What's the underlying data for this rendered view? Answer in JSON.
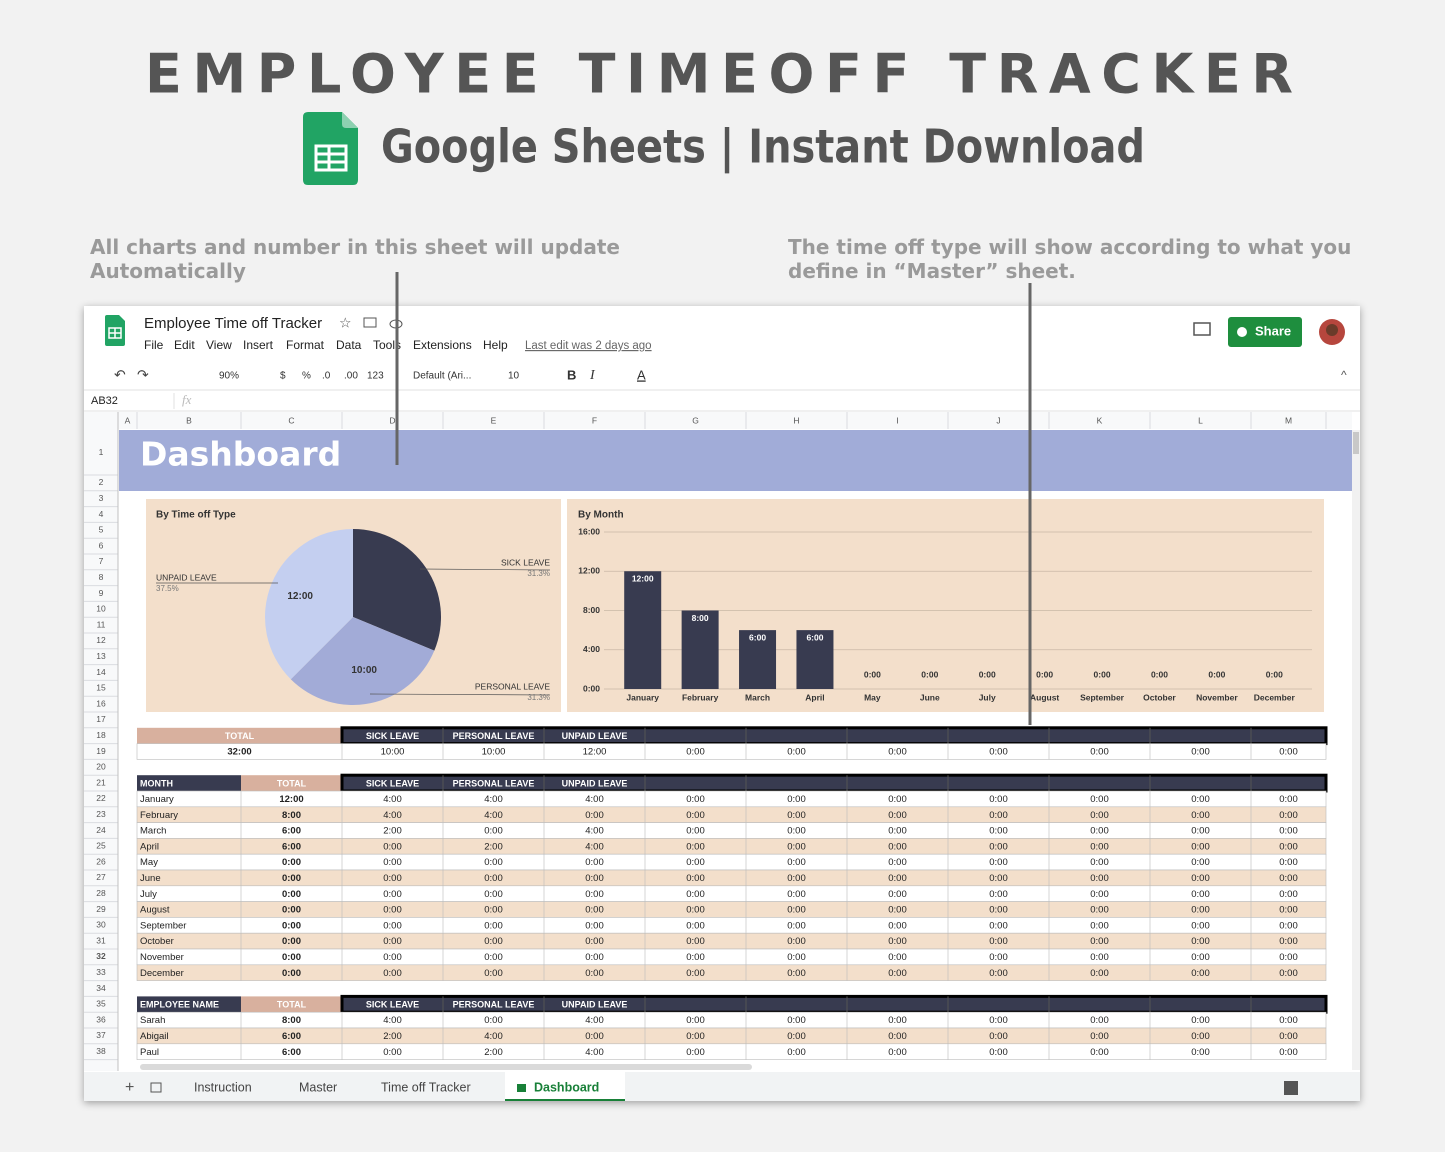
{
  "header": {
    "title": "EMPLOYEE TIMEOFF TRACKER",
    "subtitle": "Google Sheets | Instant Download"
  },
  "annotations": [
    "All charts and number in this sheet will update Automatically",
    "The time off type will show according to what you define in “Master” sheet."
  ],
  "app": {
    "doc_title": "Employee Time off Tracker",
    "menu": [
      "File",
      "Edit",
      "View",
      "Insert",
      "Format",
      "Data",
      "Tools",
      "Extensions",
      "Help"
    ],
    "last_edit": "Last edit was 2 days ago",
    "share": "Share",
    "toolbar": [
      "90%",
      "$",
      "%",
      ".0",
      ".00",
      "123",
      "Default (Ari...",
      "10",
      "B",
      "I",
      "A"
    ],
    "cell_ref": "AB32",
    "fx": "fx",
    "tabs": [
      "Instruction",
      "Master",
      "Time off Tracker",
      "Dashboard"
    ]
  },
  "sheet": {
    "columns": [
      "A",
      "B",
      "C",
      "D",
      "E",
      "F",
      "G",
      "H",
      "I",
      "J",
      "K",
      "L",
      "M"
    ],
    "rows": [
      1,
      2,
      3,
      4,
      5,
      6,
      7,
      8,
      9,
      10,
      11,
      12,
      13,
      14,
      15,
      16,
      17,
      18,
      19,
      20,
      21,
      22,
      23,
      24,
      25,
      26,
      27,
      28,
      29,
      30,
      31,
      32,
      33,
      34,
      35,
      36,
      37,
      38
    ],
    "heading": "Dashboard"
  },
  "chart_data": [
    {
      "type": "pie",
      "title": "By Time off Type",
      "categories": [
        "SICK LEAVE",
        "PERSONAL LEAVE",
        "UNPAID LEAVE"
      ],
      "values": [
        10,
        10,
        12
      ],
      "value_labels": [
        null,
        "10:00",
        "12:00"
      ],
      "percent_labels": [
        "31.3%",
        "31.3%",
        "37.5%"
      ],
      "colors": [
        "#383b50",
        "#a2abd7",
        "#c4cff0"
      ]
    },
    {
      "type": "bar",
      "title": "By Month",
      "categories": [
        "January",
        "February",
        "March",
        "April",
        "May",
        "June",
        "July",
        "August",
        "September",
        "October",
        "November",
        "December"
      ],
      "values": [
        12,
        8,
        6,
        6,
        0,
        0,
        0,
        0,
        0,
        0,
        0,
        0
      ],
      "value_labels": [
        "12:00",
        "8:00",
        "6:00",
        "6:00",
        "0:00",
        "0:00",
        "0:00",
        "0:00",
        "0:00",
        "0:00",
        "0:00",
        "0:00"
      ],
      "color": "#383b50",
      "ylim": [
        0,
        16
      ],
      "yticks": [
        {
          "value": 0,
          "label": "0:00"
        },
        {
          "value": 4,
          "label": "4:00"
        },
        {
          "value": 8,
          "label": "8:00"
        },
        {
          "value": 12,
          "label": "12:00"
        },
        {
          "value": 16,
          "label": "16:00"
        }
      ],
      "grid": true
    }
  ],
  "tables": [
    {
      "header": [
        "TOTAL",
        "SICK LEAVE",
        "PERSONAL LEAVE",
        "UNPAID LEAVE"
      ],
      "rows": [
        [
          "32:00",
          "10:00",
          "10:00",
          "12:00",
          "0:00",
          "0:00",
          "0:00",
          "0:00",
          "0:00",
          "0:00",
          "0:00"
        ]
      ]
    },
    {
      "header": [
        "MONTH",
        "TOTAL",
        "SICK LEAVE",
        "PERSONAL LEAVE",
        "UNPAID LEAVE"
      ],
      "rows": [
        [
          "January",
          "12:00",
          "4:00",
          "4:00",
          "4:00",
          "0:00",
          "0:00",
          "0:00",
          "0:00",
          "0:00",
          "0:00",
          "0:00"
        ],
        [
          "February",
          "8:00",
          "4:00",
          "4:00",
          "0:00",
          "0:00",
          "0:00",
          "0:00",
          "0:00",
          "0:00",
          "0:00",
          "0:00"
        ],
        [
          "March",
          "6:00",
          "2:00",
          "0:00",
          "4:00",
          "0:00",
          "0:00",
          "0:00",
          "0:00",
          "0:00",
          "0:00",
          "0:00"
        ],
        [
          "April",
          "6:00",
          "0:00",
          "2:00",
          "4:00",
          "0:00",
          "0:00",
          "0:00",
          "0:00",
          "0:00",
          "0:00",
          "0:00"
        ],
        [
          "May",
          "0:00",
          "0:00",
          "0:00",
          "0:00",
          "0:00",
          "0:00",
          "0:00",
          "0:00",
          "0:00",
          "0:00",
          "0:00"
        ],
        [
          "June",
          "0:00",
          "0:00",
          "0:00",
          "0:00",
          "0:00",
          "0:00",
          "0:00",
          "0:00",
          "0:00",
          "0:00",
          "0:00"
        ],
        [
          "July",
          "0:00",
          "0:00",
          "0:00",
          "0:00",
          "0:00",
          "0:00",
          "0:00",
          "0:00",
          "0:00",
          "0:00",
          "0:00"
        ],
        [
          "August",
          "0:00",
          "0:00",
          "0:00",
          "0:00",
          "0:00",
          "0:00",
          "0:00",
          "0:00",
          "0:00",
          "0:00",
          "0:00"
        ],
        [
          "September",
          "0:00",
          "0:00",
          "0:00",
          "0:00",
          "0:00",
          "0:00",
          "0:00",
          "0:00",
          "0:00",
          "0:00",
          "0:00"
        ],
        [
          "October",
          "0:00",
          "0:00",
          "0:00",
          "0:00",
          "0:00",
          "0:00",
          "0:00",
          "0:00",
          "0:00",
          "0:00",
          "0:00"
        ],
        [
          "November",
          "0:00",
          "0:00",
          "0:00",
          "0:00",
          "0:00",
          "0:00",
          "0:00",
          "0:00",
          "0:00",
          "0:00",
          "0:00"
        ],
        [
          "December",
          "0:00",
          "0:00",
          "0:00",
          "0:00",
          "0:00",
          "0:00",
          "0:00",
          "0:00",
          "0:00",
          "0:00",
          "0:00"
        ]
      ]
    },
    {
      "header": [
        "EMPLOYEE NAME",
        "TOTAL",
        "SICK LEAVE",
        "PERSONAL LEAVE",
        "UNPAID LEAVE"
      ],
      "rows": [
        [
          "Sarah",
          "8:00",
          "4:00",
          "0:00",
          "4:00",
          "0:00",
          "0:00",
          "0:00",
          "0:00",
          "0:00",
          "0:00",
          "0:00"
        ],
        [
          "Abigail",
          "6:00",
          "2:00",
          "4:00",
          "0:00",
          "0:00",
          "0:00",
          "0:00",
          "0:00",
          "0:00",
          "0:00",
          "0:00"
        ],
        [
          "Paul",
          "6:00",
          "0:00",
          "2:00",
          "4:00",
          "0:00",
          "0:00",
          "0:00",
          "0:00",
          "0:00",
          "0:00",
          "0:00"
        ]
      ]
    }
  ]
}
